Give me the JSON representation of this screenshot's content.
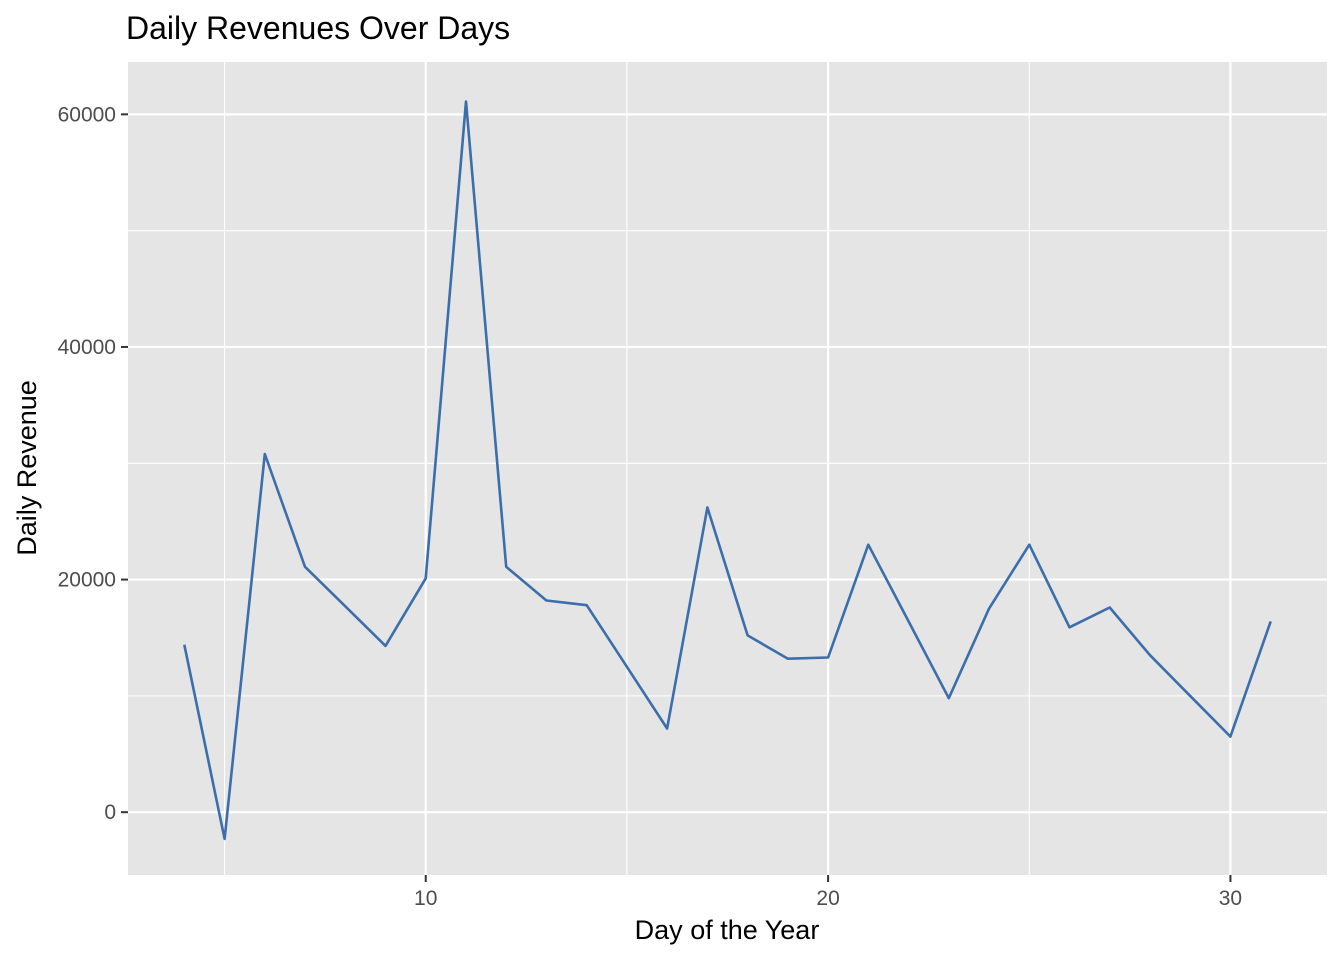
{
  "chart_data": {
    "type": "line",
    "title": "Daily Revenues Over Days",
    "xlabel": "Day of the Year",
    "ylabel": "Daily Revenue",
    "xlim": [
      2.6,
      32.4
    ],
    "ylim": [
      -5400,
      64500
    ],
    "x_ticks": [
      10,
      20,
      30
    ],
    "x_minor_ticks": [
      5,
      15,
      25
    ],
    "y_ticks": [
      0,
      20000,
      40000,
      60000
    ],
    "y_minor_ticks": [
      10000,
      30000,
      50000
    ],
    "grid": true,
    "legend": "none",
    "series": [
      {
        "x": [
          4,
          5,
          6,
          7,
          8,
          9,
          10,
          11,
          12,
          13,
          14,
          15,
          16,
          17,
          18,
          19,
          20,
          21,
          22,
          23,
          24,
          25,
          26,
          27,
          28,
          29,
          30,
          31
        ],
        "y": [
          14400,
          -2300,
          30800,
          21100,
          17700,
          14300,
          20100,
          61100,
          21100,
          18200,
          17800,
          12500,
          7200,
          26200,
          15200,
          13200,
          13300,
          23000,
          16400,
          9800,
          17500,
          23000,
          15900,
          17600,
          13500,
          10000,
          6500,
          16400
        ]
      }
    ],
    "colors": {
      "line": "#3b6eab",
      "panel_background": "#e5e5e5",
      "grid": "#ffffff"
    }
  }
}
